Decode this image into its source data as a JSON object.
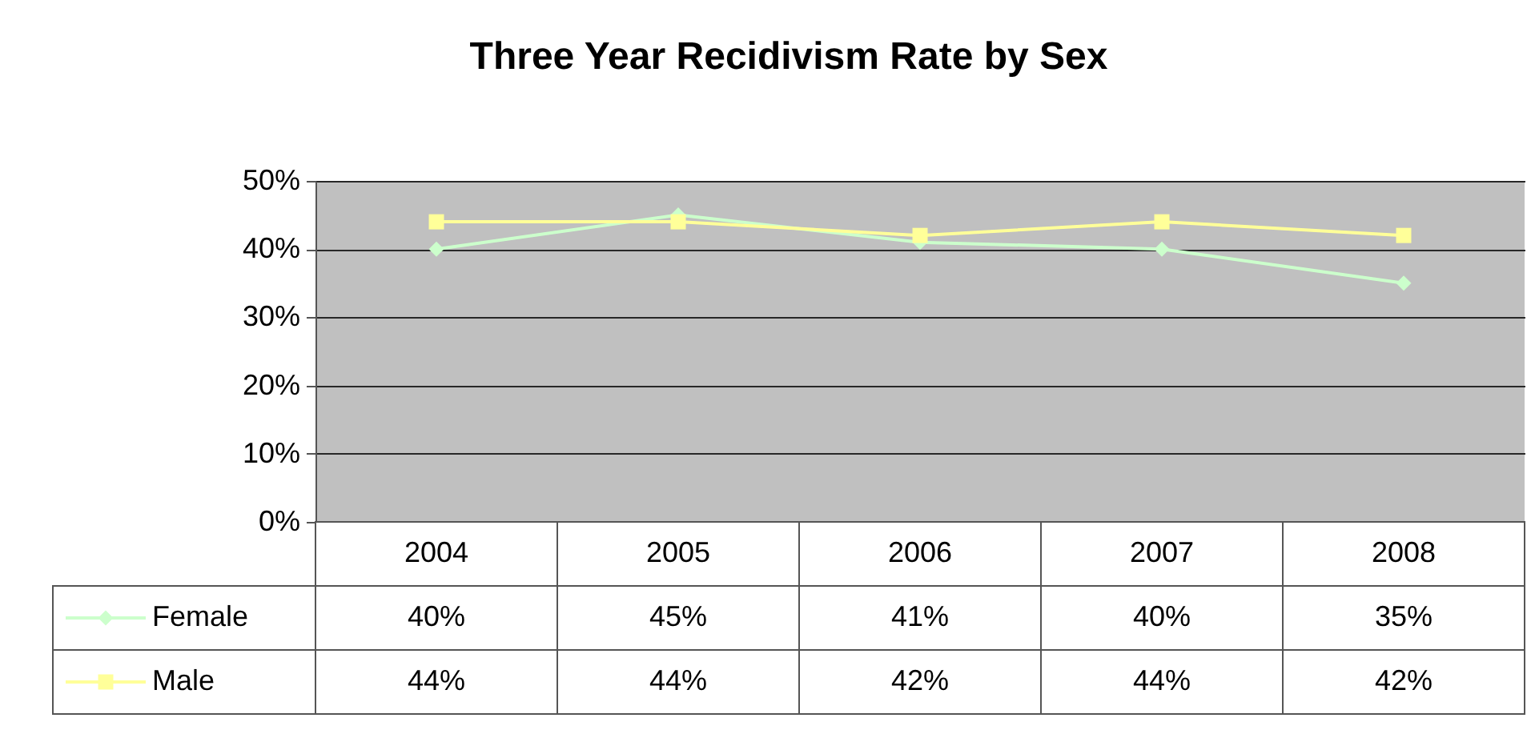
{
  "chart_data": {
    "type": "line",
    "title": "Three Year Recidivism Rate by Sex",
    "categories": [
      "2004",
      "2005",
      "2006",
      "2007",
      "2008"
    ],
    "series": [
      {
        "name": "Female",
        "color": "#ccffcc",
        "marker": "diamond",
        "values": [
          40,
          45,
          41,
          40,
          35
        ],
        "value_labels": [
          "40%",
          "45%",
          "41%",
          "40%",
          "35%"
        ]
      },
      {
        "name": "Male",
        "color": "#ffff99",
        "marker": "square",
        "values": [
          44,
          44,
          42,
          44,
          42
        ],
        "value_labels": [
          "44%",
          "44%",
          "42%",
          "44%",
          "42%"
        ]
      }
    ],
    "ylim": [
      0,
      50
    ],
    "yticks": [
      {
        "value": 0,
        "label": "0%"
      },
      {
        "value": 10,
        "label": "10%"
      },
      {
        "value": 20,
        "label": "20%"
      },
      {
        "value": 30,
        "label": "30%"
      },
      {
        "value": 40,
        "label": "40%"
      },
      {
        "value": 50,
        "label": "50%"
      }
    ],
    "grid": "y",
    "legend": "bottom left"
  }
}
